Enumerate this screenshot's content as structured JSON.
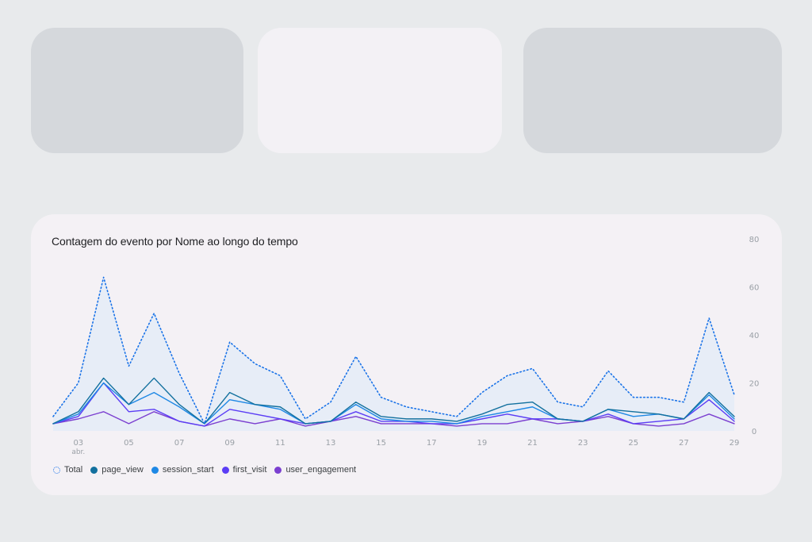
{
  "colors": {
    "total": "#1a73e8",
    "page_view": "#12709e",
    "session_start": "#1e88e5",
    "first_visit": "#5b3df5",
    "user_engagement": "#7b3fd0",
    "fill": "#e4ecf8"
  },
  "chart_data": {
    "type": "line",
    "title": "Contagem do evento por Nome ao longo do tempo",
    "xlabel": "",
    "ylabel": "",
    "ylim": [
      0,
      80
    ],
    "y_ticks": [
      "80",
      "60",
      "40",
      "20",
      "0"
    ],
    "y_tick_values": [
      80,
      60,
      40,
      20,
      0
    ],
    "x_days": [
      2,
      3,
      4,
      5,
      6,
      7,
      8,
      9,
      10,
      11,
      12,
      13,
      14,
      15,
      16,
      17,
      18,
      19,
      20,
      21,
      22,
      23,
      24,
      25,
      26,
      27,
      28,
      29
    ],
    "x_ticks": [
      "03",
      "05",
      "07",
      "09",
      "11",
      "13",
      "15",
      "17",
      "19",
      "21",
      "23",
      "25",
      "27",
      "29"
    ],
    "x_tick_days": [
      3,
      5,
      7,
      9,
      11,
      13,
      15,
      17,
      19,
      21,
      23,
      25,
      27,
      29
    ],
    "x_sub_label": "abr.",
    "grid": false,
    "legend_position": "bottom-left",
    "series": [
      {
        "name": "Total",
        "key": "total",
        "style": "dotted",
        "values": [
          6,
          20,
          64,
          27,
          49,
          24,
          3,
          37,
          28,
          23,
          5,
          12,
          31,
          14,
          10,
          8,
          6,
          16,
          23,
          26,
          12,
          10,
          25,
          14,
          14,
          12,
          47,
          15
        ]
      },
      {
        "name": "page_view",
        "key": "page_view",
        "style": "solid",
        "values": [
          3,
          8,
          22,
          11,
          22,
          11,
          3,
          16,
          11,
          10,
          3,
          4,
          12,
          6,
          5,
          5,
          4,
          7,
          11,
          12,
          5,
          4,
          9,
          8,
          7,
          5,
          16,
          6
        ]
      },
      {
        "name": "session_start",
        "key": "session_start",
        "style": "solid",
        "values": [
          3,
          7,
          20,
          11,
          16,
          10,
          3,
          13,
          11,
          9,
          3,
          4,
          11,
          5,
          4,
          4,
          3,
          6,
          8,
          10,
          5,
          4,
          9,
          6,
          7,
          5,
          15,
          5
        ]
      },
      {
        "name": "first_visit",
        "key": "first_visit",
        "style": "solid",
        "values": [
          3,
          6,
          20,
          8,
          9,
          4,
          2,
          9,
          7,
          5,
          3,
          4,
          8,
          4,
          4,
          3,
          3,
          5,
          7,
          5,
          5,
          4,
          7,
          3,
          4,
          5,
          13,
          4
        ]
      },
      {
        "name": "user_engagement",
        "key": "user_engagement",
        "style": "solid",
        "values": [
          3,
          5,
          8,
          3,
          8,
          4,
          2,
          5,
          3,
          5,
          2,
          4,
          6,
          3,
          3,
          3,
          2,
          3,
          3,
          5,
          3,
          4,
          6,
          3,
          2,
          3,
          7,
          3
        ]
      }
    ]
  }
}
